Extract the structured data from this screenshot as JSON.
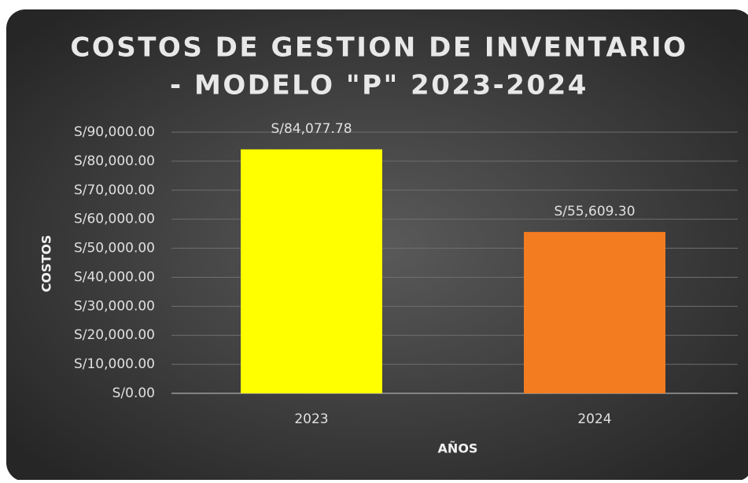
{
  "chart_data": {
    "type": "bar",
    "title": [
      "COSTOS DE GESTION DE INVENTARIO",
      "- MODELO \"P\" 2023-2024"
    ],
    "x_label": "AÑOS",
    "y_label": "COSTOS",
    "categories": [
      "2023",
      "2024"
    ],
    "values": [
      84077.78,
      55609.3
    ],
    "value_labels": [
      "S/84,077.78",
      "S/55,609.30"
    ],
    "colors": [
      "#ffff00",
      "#f47c20"
    ],
    "ylim": [
      0,
      90000
    ],
    "yticks": [
      {
        "value": 0,
        "label": "S/0.00"
      },
      {
        "value": 10000,
        "label": "S/10,000.00"
      },
      {
        "value": 20000,
        "label": "S/20,000.00"
      },
      {
        "value": 30000,
        "label": "S/30,000.00"
      },
      {
        "value": 40000,
        "label": "S/40,000.00"
      },
      {
        "value": 50000,
        "label": "S/50,000.00"
      },
      {
        "value": 60000,
        "label": "S/60,000.00"
      },
      {
        "value": 70000,
        "label": "S/70,000.00"
      },
      {
        "value": 80000,
        "label": "S/80,000.00"
      },
      {
        "value": 90000,
        "label": "S/90,000.00"
      }
    ],
    "grid": true
  }
}
